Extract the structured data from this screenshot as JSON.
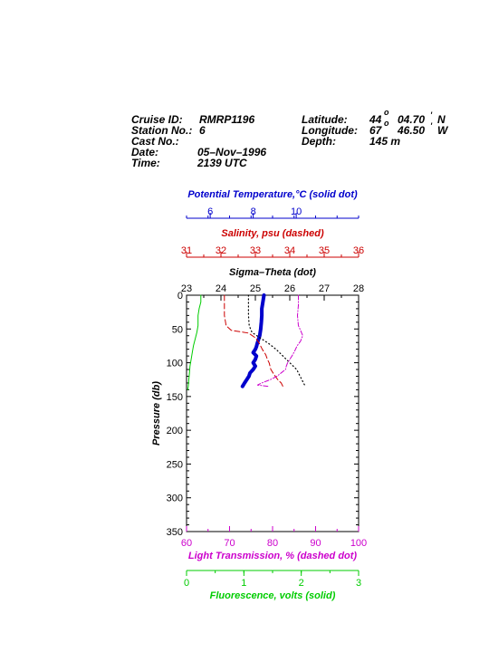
{
  "header": {
    "cruise_label": "Cruise ID:",
    "cruise_value": "RMRP1196",
    "station_label": "Station No.:",
    "station_value": "6",
    "cast_label": "Cast No.:",
    "cast_value": "",
    "date_label": "Date:",
    "date_value": "05–Nov–1996",
    "time_label": "Time:",
    "time_value": "2139 UTC",
    "lat_label": "Latitude:",
    "lat_deg": "44",
    "lat_min": "04.70",
    "lat_hem": "N",
    "lon_label": "Longitude:",
    "lon_deg": "67",
    "lon_min": "46.50",
    "lon_hem": "W",
    "depth_label": "Depth:",
    "depth_value": "145 m"
  },
  "chart_data": {
    "type": "line",
    "y_axis": {
      "label": "Pressure (db)",
      "range": [
        0,
        350
      ],
      "inverted": true,
      "ticks": [
        "0",
        "50",
        "100",
        "150",
        "200",
        "250",
        "300",
        "350"
      ]
    },
    "top_axes": [
      {
        "key": "temp",
        "label": "Potential Temperature,°C (solid dot)",
        "color": "#0000cc",
        "range": [
          4.9,
          12.9
        ],
        "ticks": [
          "6",
          "8",
          "10"
        ],
        "tick_values": [
          6,
          8,
          10
        ]
      },
      {
        "key": "sal",
        "label": "Salinity, psu  (dashed)",
        "color": "#cc0000",
        "range": [
          31,
          36
        ],
        "ticks": [
          "31",
          "32",
          "33",
          "34",
          "35",
          "36"
        ],
        "tick_values": [
          31,
          32,
          33,
          34,
          35,
          36
        ]
      },
      {
        "key": "sigma",
        "label": "Sigma–Theta (dot)",
        "color": "#000000",
        "range": [
          23,
          28
        ],
        "ticks": [
          "23",
          "24",
          "25",
          "26",
          "27",
          "28"
        ],
        "tick_values": [
          23,
          24,
          25,
          26,
          27,
          28
        ]
      }
    ],
    "bottom_axes": [
      {
        "key": "trans",
        "label": "Light Transmission, % (dashed dot)",
        "color": "#cc00cc",
        "range": [
          60,
          100
        ],
        "ticks": [
          "60",
          "70",
          "80",
          "90",
          "100"
        ],
        "tick_values": [
          60,
          70,
          80,
          90,
          100
        ]
      },
      {
        "key": "fluor",
        "label": "Fluorescence, volts (solid)",
        "color": "#00cc00",
        "range": [
          0,
          3
        ],
        "ticks": [
          "0",
          "1",
          "2",
          "3"
        ],
        "tick_values": [
          0,
          1,
          2,
          3
        ]
      }
    ],
    "series": [
      {
        "key": "temp",
        "color": "#0000cc",
        "style": "thick",
        "points": [
          [
            8.5,
            0
          ],
          [
            8.45,
            10
          ],
          [
            8.4,
            20
          ],
          [
            8.4,
            30
          ],
          [
            8.38,
            40
          ],
          [
            8.35,
            50
          ],
          [
            8.3,
            60
          ],
          [
            8.2,
            70
          ],
          [
            8.15,
            76
          ],
          [
            8.1,
            80
          ],
          [
            8.0,
            85
          ],
          [
            8.15,
            90
          ],
          [
            8.1,
            95
          ],
          [
            8.0,
            100
          ],
          [
            8.1,
            105
          ],
          [
            8.0,
            110
          ],
          [
            7.85,
            115
          ],
          [
            7.8,
            120
          ],
          [
            7.7,
            125
          ],
          [
            7.6,
            130
          ],
          [
            7.5,
            135
          ]
        ]
      },
      {
        "key": "sal",
        "color": "#cc0000",
        "style": "dashed",
        "points": [
          [
            32.1,
            0
          ],
          [
            32.1,
            15
          ],
          [
            32.1,
            30
          ],
          [
            32.15,
            45
          ],
          [
            32.3,
            52
          ],
          [
            32.8,
            56
          ],
          [
            33.0,
            63
          ],
          [
            33.1,
            70
          ],
          [
            33.15,
            75
          ],
          [
            33.2,
            80
          ],
          [
            33.3,
            88
          ],
          [
            33.35,
            95
          ],
          [
            33.4,
            100
          ],
          [
            33.45,
            110
          ],
          [
            33.55,
            118
          ],
          [
            33.65,
            125
          ],
          [
            33.75,
            130
          ],
          [
            33.8,
            135
          ]
        ]
      },
      {
        "key": "sigma",
        "color": "#000000",
        "style": "dotted",
        "points": [
          [
            24.8,
            0
          ],
          [
            24.8,
            15
          ],
          [
            24.8,
            30
          ],
          [
            24.82,
            45
          ],
          [
            24.9,
            55
          ],
          [
            25.1,
            62
          ],
          [
            25.4,
            72
          ],
          [
            25.6,
            80
          ],
          [
            25.8,
            90
          ],
          [
            26.0,
            100
          ],
          [
            26.2,
            110
          ],
          [
            26.3,
            120
          ],
          [
            26.4,
            130
          ],
          [
            26.45,
            135
          ]
        ]
      },
      {
        "key": "trans",
        "color": "#cc00cc",
        "style": "dashdot",
        "points": [
          [
            86,
            0
          ],
          [
            86,
            15
          ],
          [
            85.8,
            30
          ],
          [
            86.0,
            45
          ],
          [
            86.5,
            52
          ],
          [
            87,
            60
          ],
          [
            86.5,
            68
          ],
          [
            85.7,
            75
          ],
          [
            85.2,
            82
          ],
          [
            84.5,
            90
          ],
          [
            84.0,
            95
          ],
          [
            83.5,
            100
          ],
          [
            83.2,
            105
          ],
          [
            83.0,
            110
          ],
          [
            82.0,
            115
          ],
          [
            81.0,
            120
          ],
          [
            79.5,
            125
          ],
          [
            77.5,
            130
          ],
          [
            76.5,
            133
          ],
          [
            79,
            135
          ]
        ]
      },
      {
        "key": "fluor",
        "color": "#00cc00",
        "style": "solid",
        "points": [
          [
            0.25,
            0
          ],
          [
            0.25,
            10
          ],
          [
            0.22,
            20
          ],
          [
            0.2,
            30
          ],
          [
            0.2,
            45
          ],
          [
            0.18,
            55
          ],
          [
            0.15,
            65
          ],
          [
            0.12,
            75
          ],
          [
            0.1,
            85
          ],
          [
            0.08,
            95
          ],
          [
            0.06,
            105
          ],
          [
            0.05,
            115
          ],
          [
            0.04,
            125
          ],
          [
            0.03,
            135
          ],
          [
            0.02,
            140
          ]
        ]
      }
    ]
  }
}
